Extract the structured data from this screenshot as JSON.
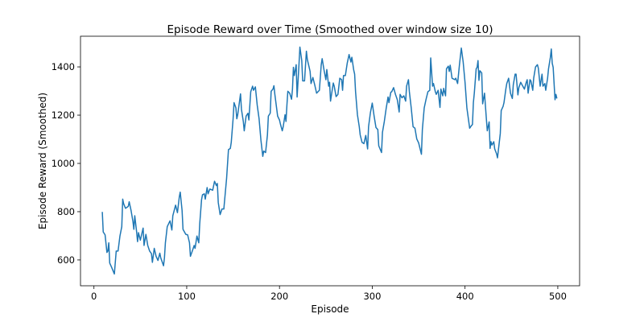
{
  "chart_data": {
    "type": "line",
    "title": "Episode Reward over Time (Smoothed over window size 10)",
    "xlabel": "Episode",
    "ylabel": "Episode Reward (Smoothed)",
    "xlim": [
      -14.5,
      523.5
    ],
    "ylim": [
      493,
      1527
    ],
    "xticks": [
      0,
      100,
      200,
      300,
      400,
      500
    ],
    "yticks": [
      600,
      800,
      1000,
      1200,
      1400
    ],
    "xtick_labels": [
      "0",
      "100",
      "200",
      "300",
      "400",
      "500"
    ],
    "ytick_labels": [
      "600",
      "800",
      "1000",
      "1200",
      "1400"
    ],
    "grid": false,
    "series": [
      {
        "color": "#1f77b4",
        "points": [
          [
            9,
            799
          ],
          [
            10,
            716
          ],
          [
            12,
            704
          ],
          [
            14,
            631
          ],
          [
            15,
            637
          ],
          [
            16,
            671
          ],
          [
            17,
            587
          ],
          [
            19,
            570
          ],
          [
            22,
            542
          ],
          [
            24,
            637
          ],
          [
            26,
            637
          ],
          [
            28,
            699
          ],
          [
            30,
            738
          ],
          [
            31,
            852
          ],
          [
            32,
            833
          ],
          [
            34,
            814
          ],
          [
            37,
            822
          ],
          [
            38,
            841
          ],
          [
            40,
            805
          ],
          [
            42,
            760
          ],
          [
            43,
            727
          ],
          [
            44,
            783
          ],
          [
            46,
            716
          ],
          [
            47,
            676
          ],
          [
            48,
            713
          ],
          [
            50,
            682
          ],
          [
            53,
            732
          ],
          [
            54,
            660
          ],
          [
            56,
            706
          ],
          [
            58,
            660
          ],
          [
            60,
            637
          ],
          [
            62,
            626
          ],
          [
            63,
            590
          ],
          [
            65,
            648
          ],
          [
            67,
            615
          ],
          [
            69,
            598
          ],
          [
            71,
            628
          ],
          [
            72,
            609
          ],
          [
            75,
            576
          ],
          [
            76,
            609
          ],
          [
            77,
            671
          ],
          [
            79,
            738
          ],
          [
            82,
            762
          ],
          [
            84,
            724
          ],
          [
            85,
            783
          ],
          [
            88,
            827
          ],
          [
            90,
            796
          ],
          [
            92,
            861
          ],
          [
            93,
            881
          ],
          [
            95,
            805
          ],
          [
            96,
            727
          ],
          [
            99,
            706
          ],
          [
            101,
            704
          ],
          [
            103,
            671
          ],
          [
            104,
            615
          ],
          [
            106,
            637
          ],
          [
            108,
            660
          ],
          [
            109,
            648
          ],
          [
            111,
            699
          ],
          [
            113,
            671
          ],
          [
            114,
            749
          ],
          [
            116,
            850
          ],
          [
            117,
            870
          ],
          [
            119,
            874
          ],
          [
            120,
            852
          ],
          [
            122,
            900
          ],
          [
            123,
            874
          ],
          [
            125,
            894
          ],
          [
            128,
            889
          ],
          [
            130,
            926
          ],
          [
            132,
            908
          ],
          [
            133,
            917
          ],
          [
            134,
            838
          ],
          [
            136,
            788
          ],
          [
            138,
            811
          ],
          [
            140,
            811
          ],
          [
            143,
            939
          ],
          [
            145,
            1057
          ],
          [
            147,
            1062
          ],
          [
            148,
            1087
          ],
          [
            150,
            1185
          ],
          [
            151,
            1252
          ],
          [
            153,
            1230
          ],
          [
            154,
            1185
          ],
          [
            155,
            1202
          ],
          [
            158,
            1288
          ],
          [
            159,
            1224
          ],
          [
            161,
            1174
          ],
          [
            162,
            1135
          ],
          [
            164,
            1196
          ],
          [
            166,
            1208
          ],
          [
            167,
            1180
          ],
          [
            169,
            1297
          ],
          [
            171,
            1320
          ],
          [
            172,
            1303
          ],
          [
            174,
            1317
          ],
          [
            176,
            1241
          ],
          [
            178,
            1185
          ],
          [
            180,
            1096
          ],
          [
            182,
            1029
          ],
          [
            183,
            1051
          ],
          [
            185,
            1045
          ],
          [
            187,
            1118
          ],
          [
            188,
            1196
          ],
          [
            190,
            1208
          ],
          [
            191,
            1299
          ],
          [
            193,
            1308
          ],
          [
            194,
            1322
          ],
          [
            195,
            1286
          ],
          [
            198,
            1196
          ],
          [
            200,
            1180
          ],
          [
            201,
            1163
          ],
          [
            203,
            1135
          ],
          [
            204,
            1152
          ],
          [
            206,
            1202
          ],
          [
            207,
            1174
          ],
          [
            208,
            1241
          ],
          [
            209,
            1299
          ],
          [
            211,
            1291
          ],
          [
            213,
            1266
          ],
          [
            214,
            1308
          ],
          [
            215,
            1398
          ],
          [
            216,
            1364
          ],
          [
            218,
            1409
          ],
          [
            219,
            1275
          ],
          [
            221,
            1409
          ],
          [
            222,
            1482
          ],
          [
            224,
            1426
          ],
          [
            225,
            1342
          ],
          [
            227,
            1342
          ],
          [
            229,
            1465
          ],
          [
            230,
            1431
          ],
          [
            232,
            1398
          ],
          [
            233,
            1381
          ],
          [
            234,
            1331
          ],
          [
            236,
            1356
          ],
          [
            238,
            1325
          ],
          [
            240,
            1291
          ],
          [
            243,
            1303
          ],
          [
            245,
            1409
          ],
          [
            246,
            1434
          ],
          [
            248,
            1387
          ],
          [
            250,
            1347
          ],
          [
            251,
            1389
          ],
          [
            253,
            1320
          ],
          [
            254,
            1336
          ],
          [
            255,
            1258
          ],
          [
            258,
            1333
          ],
          [
            259,
            1320
          ],
          [
            261,
            1277
          ],
          [
            263,
            1286
          ],
          [
            265,
            1353
          ],
          [
            267,
            1347
          ],
          [
            268,
            1303
          ],
          [
            269,
            1364
          ],
          [
            271,
            1364
          ],
          [
            273,
            1415
          ],
          [
            275,
            1451
          ],
          [
            277,
            1420
          ],
          [
            278,
            1440
          ],
          [
            280,
            1387
          ],
          [
            281,
            1370
          ],
          [
            282,
            1297
          ],
          [
            284,
            1202
          ],
          [
            286,
            1152
          ],
          [
            287,
            1118
          ],
          [
            289,
            1087
          ],
          [
            291,
            1082
          ],
          [
            293,
            1116
          ],
          [
            295,
            1060
          ],
          [
            296,
            1152
          ],
          [
            298,
            1210
          ],
          [
            300,
            1250
          ],
          [
            302,
            1196
          ],
          [
            304,
            1149
          ],
          [
            306,
            1140
          ],
          [
            307,
            1073
          ],
          [
            310,
            1045
          ],
          [
            311,
            1129
          ],
          [
            313,
            1174
          ],
          [
            315,
            1228
          ],
          [
            317,
            1275
          ],
          [
            318,
            1252
          ],
          [
            320,
            1295
          ],
          [
            321,
            1297
          ],
          [
            323,
            1314
          ],
          [
            325,
            1286
          ],
          [
            327,
            1264
          ],
          [
            329,
            1213
          ],
          [
            330,
            1286
          ],
          [
            332,
            1272
          ],
          [
            334,
            1280
          ],
          [
            336,
            1258
          ],
          [
            337,
            1320
          ],
          [
            339,
            1347
          ],
          [
            340,
            1297
          ],
          [
            342,
            1230
          ],
          [
            344,
            1152
          ],
          [
            346,
            1146
          ],
          [
            348,
            1101
          ],
          [
            350,
            1085
          ],
          [
            353,
            1038
          ],
          [
            354,
            1140
          ],
          [
            356,
            1230
          ],
          [
            358,
            1266
          ],
          [
            360,
            1297
          ],
          [
            362,
            1303
          ],
          [
            363,
            1437
          ],
          [
            365,
            1320
          ],
          [
            366,
            1331
          ],
          [
            368,
            1297
          ],
          [
            369,
            1286
          ],
          [
            371,
            1303
          ],
          [
            373,
            1232
          ],
          [
            374,
            1308
          ],
          [
            376,
            1280
          ],
          [
            377,
            1311
          ],
          [
            379,
            1280
          ],
          [
            380,
            1392
          ],
          [
            382,
            1403
          ],
          [
            383,
            1381
          ],
          [
            384,
            1407
          ],
          [
            386,
            1353
          ],
          [
            389,
            1347
          ],
          [
            390,
            1353
          ],
          [
            392,
            1331
          ],
          [
            394,
            1409
          ],
          [
            396,
            1478
          ],
          [
            398,
            1420
          ],
          [
            400,
            1336
          ],
          [
            402,
            1230
          ],
          [
            405,
            1146
          ],
          [
            407,
            1157
          ],
          [
            408,
            1161
          ],
          [
            409,
            1252
          ],
          [
            410,
            1291
          ],
          [
            412,
            1392
          ],
          [
            413,
            1398
          ],
          [
            414,
            1426
          ],
          [
            415,
            1344
          ],
          [
            416,
            1384
          ],
          [
            418,
            1375
          ],
          [
            419,
            1247
          ],
          [
            421,
            1291
          ],
          [
            423,
            1185
          ],
          [
            424,
            1135
          ],
          [
            426,
            1172
          ],
          [
            427,
            1062
          ],
          [
            428,
            1090
          ],
          [
            429,
            1076
          ],
          [
            431,
            1090
          ],
          [
            432,
            1060
          ],
          [
            434,
            1040
          ],
          [
            435,
            1023
          ],
          [
            437,
            1090
          ],
          [
            438,
            1124
          ],
          [
            439,
            1219
          ],
          [
            441,
            1236
          ],
          [
            442,
            1252
          ],
          [
            444,
            1308
          ],
          [
            445,
            1331
          ],
          [
            447,
            1353
          ],
          [
            449,
            1291
          ],
          [
            451,
            1269
          ],
          [
            452,
            1325
          ],
          [
            454,
            1370
          ],
          [
            455,
            1370
          ],
          [
            457,
            1284
          ],
          [
            458,
            1314
          ],
          [
            460,
            1336
          ],
          [
            462,
            1322
          ],
          [
            464,
            1308
          ],
          [
            466,
            1336
          ],
          [
            467,
            1347
          ],
          [
            468,
            1291
          ],
          [
            470,
            1347
          ],
          [
            471,
            1342
          ],
          [
            473,
            1303
          ],
          [
            474,
            1353
          ],
          [
            476,
            1400
          ],
          [
            478,
            1409
          ],
          [
            479,
            1395
          ],
          [
            481,
            1320
          ],
          [
            483,
            1370
          ],
          [
            484,
            1320
          ],
          [
            486,
            1331
          ],
          [
            487,
            1303
          ],
          [
            489,
            1353
          ],
          [
            490,
            1392
          ],
          [
            492,
            1440
          ],
          [
            493,
            1474
          ],
          [
            494,
            1415
          ],
          [
            495,
            1398
          ],
          [
            497,
            1264
          ],
          [
            498,
            1286
          ],
          [
            499,
            1269
          ]
        ]
      }
    ]
  }
}
